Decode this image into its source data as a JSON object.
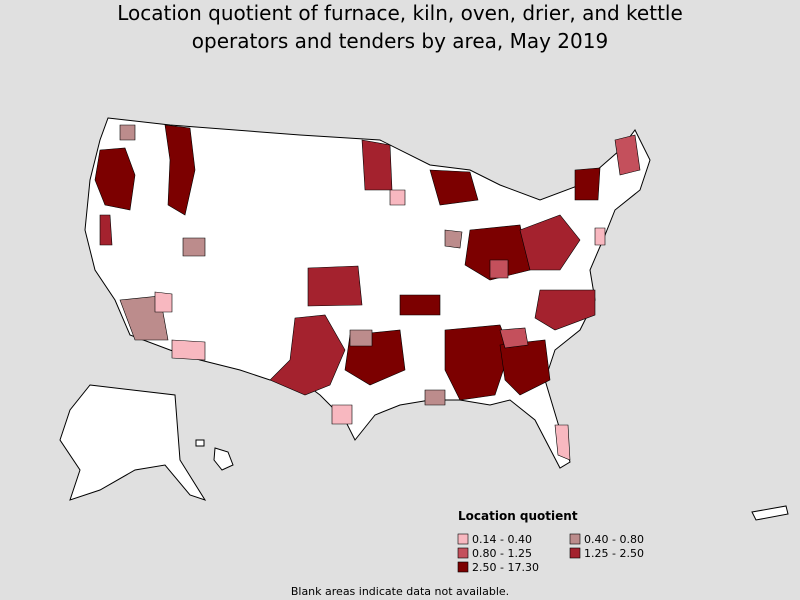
{
  "title": [
    "Location quotient of furnace, kiln, oven, drier, and kettle",
    "operators and tenders by area, May 2019"
  ],
  "legend": {
    "title": "Location quotient",
    "items": [
      {
        "label": "0.14 - 0.40",
        "color": "#f8b8c0"
      },
      {
        "label": "0.40 - 0.80",
        "color": "#bc8c8c"
      },
      {
        "label": "0.80 - 1.25",
        "color": "#c4505c"
      },
      {
        "label": "1.25 - 2.50",
        "color": "#a4222e"
      },
      {
        "label": "2.50 - 17.30",
        "color": "#7c0000"
      }
    ]
  },
  "note": "Blank areas indicate data not available."
}
